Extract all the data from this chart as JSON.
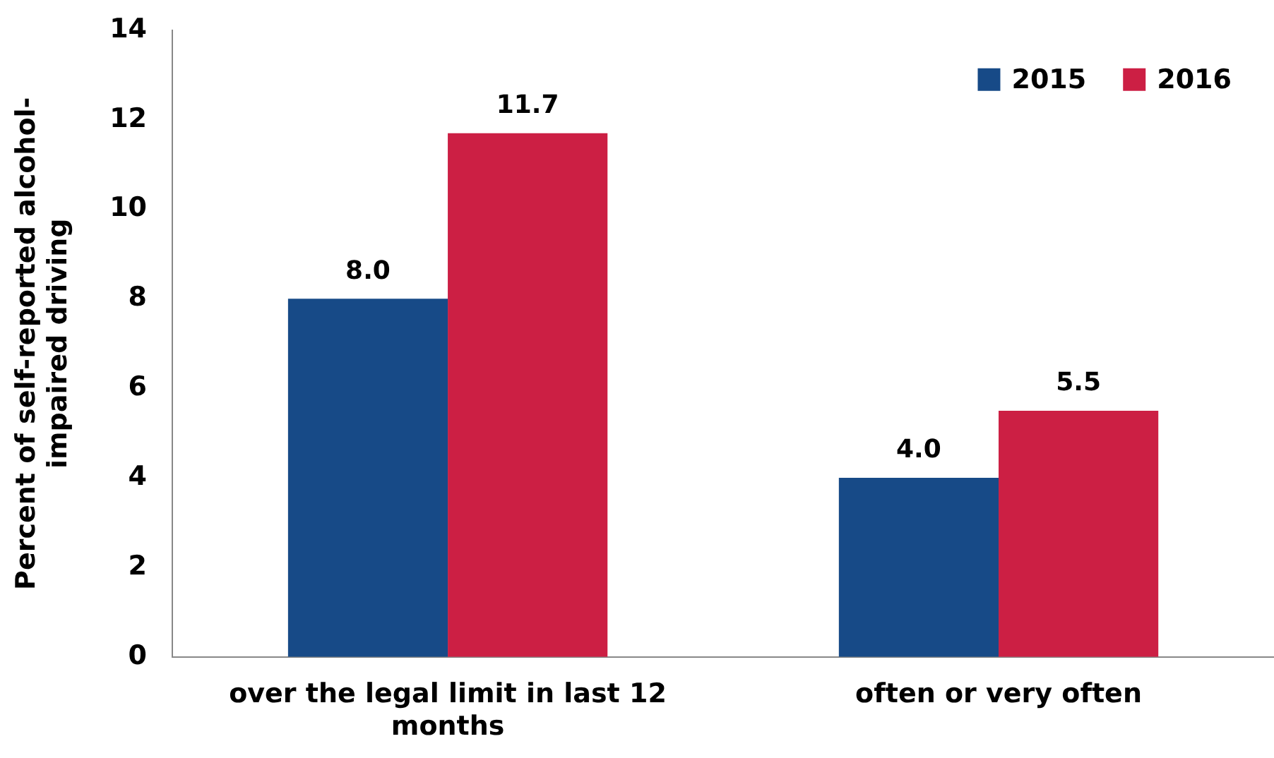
{
  "chart_data": {
    "type": "bar",
    "ylabel": "Percent of self-reported alcohol-impaired driving",
    "categories": [
      "over the legal limit in last 12 months",
      "often or very often"
    ],
    "series": [
      {
        "name": "2015",
        "color": "#174a87",
        "values": [
          8.0,
          4.0
        ],
        "value_labels": [
          "8.0",
          "4.0"
        ]
      },
      {
        "name": "2016",
        "color": "#cc1f44",
        "values": [
          11.7,
          5.5
        ],
        "value_labels": [
          "11.7",
          "5.5"
        ]
      }
    ],
    "ylim": [
      0,
      14
    ],
    "yticks": [
      0,
      2,
      4,
      6,
      8,
      10,
      12,
      14
    ],
    "grid": false,
    "legend": "top right"
  }
}
